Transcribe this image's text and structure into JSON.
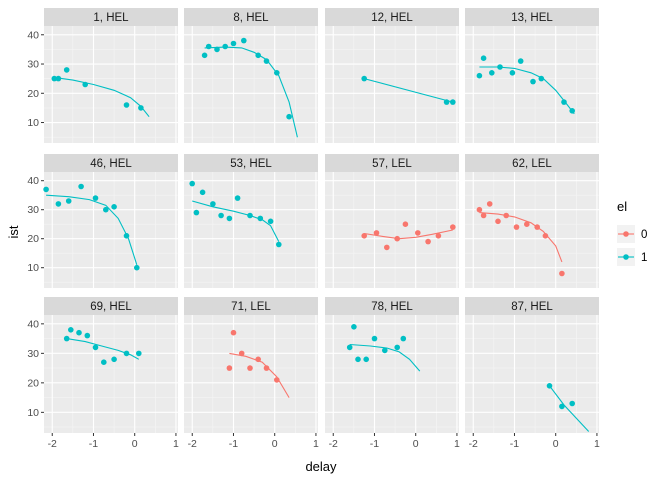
{
  "chart_data": {
    "type": "scatter",
    "xlabel": "delay",
    "ylabel": "ist",
    "xlim": [
      -2.2,
      1.05
    ],
    "ylim": [
      3,
      43
    ],
    "x_ticks": [
      -2,
      -1,
      0,
      1
    ],
    "x_tick_labels": [
      "-2",
      "-1",
      "0",
      "1"
    ],
    "y_ticks": [
      10,
      20,
      30,
      40
    ],
    "y_tick_labels": [
      "10",
      "20",
      "30",
      "40"
    ],
    "grid": true,
    "legend": {
      "title": "el",
      "position": "right",
      "entries": [
        {
          "label": "0",
          "color": "#F8766D"
        },
        {
          "label": "1",
          "color": "#00BFC4"
        }
      ]
    },
    "panels": [
      {
        "label": "1, HEL",
        "el": "1",
        "points": [
          [
            -1.95,
            25
          ],
          [
            -1.85,
            25
          ],
          [
            -1.65,
            28
          ],
          [
            -1.2,
            23
          ],
          [
            -0.2,
            16
          ],
          [
            0.15,
            15
          ]
        ],
        "curve": [
          [
            -2.0,
            25.5
          ],
          [
            -1.5,
            24.5
          ],
          [
            -1.0,
            23
          ],
          [
            -0.5,
            21
          ],
          [
            -0.1,
            18.5
          ],
          [
            0.15,
            15.5
          ],
          [
            0.35,
            12
          ]
        ]
      },
      {
        "label": "8, HEL",
        "el": "1",
        "points": [
          [
            -1.7,
            33
          ],
          [
            -1.6,
            36
          ],
          [
            -1.4,
            35
          ],
          [
            -1.2,
            36
          ],
          [
            -1.0,
            37
          ],
          [
            -0.75,
            38
          ],
          [
            -0.4,
            33
          ],
          [
            -0.2,
            31
          ],
          [
            0.05,
            27
          ],
          [
            0.35,
            12
          ]
        ],
        "curve": [
          [
            -1.7,
            35.5
          ],
          [
            -1.2,
            35.8
          ],
          [
            -0.8,
            35.5
          ],
          [
            -0.5,
            34
          ],
          [
            -0.2,
            31.5
          ],
          [
            0.1,
            26
          ],
          [
            0.35,
            17
          ],
          [
            0.55,
            5
          ]
        ]
      },
      {
        "label": "12, HEL",
        "el": "1",
        "points": [
          [
            -1.25,
            25
          ],
          [
            0.75,
            17
          ],
          [
            0.9,
            17
          ]
        ],
        "curve": [
          [
            -1.25,
            25
          ],
          [
            0.9,
            17
          ]
        ]
      },
      {
        "label": "13, HEL",
        "el": "1",
        "points": [
          [
            -1.85,
            26
          ],
          [
            -1.75,
            32
          ],
          [
            -1.55,
            27
          ],
          [
            -1.35,
            29
          ],
          [
            -1.05,
            27
          ],
          [
            -0.85,
            31
          ],
          [
            -0.55,
            24
          ],
          [
            -0.35,
            25
          ],
          [
            0.2,
            17
          ],
          [
            0.4,
            14
          ]
        ],
        "curve": [
          [
            -1.85,
            29
          ],
          [
            -1.4,
            29
          ],
          [
            -1.0,
            28.5
          ],
          [
            -0.6,
            27
          ],
          [
            -0.3,
            25
          ],
          [
            0.0,
            21
          ],
          [
            0.2,
            17.5
          ],
          [
            0.45,
            13
          ]
        ]
      },
      {
        "label": "46, HEL",
        "el": "1",
        "points": [
          [
            -2.15,
            37
          ],
          [
            -1.85,
            32
          ],
          [
            -1.6,
            33
          ],
          [
            -1.3,
            38
          ],
          [
            -0.95,
            34
          ],
          [
            -0.7,
            30
          ],
          [
            -0.5,
            31
          ],
          [
            -0.2,
            21
          ],
          [
            0.05,
            10
          ]
        ],
        "curve": [
          [
            -2.15,
            35
          ],
          [
            -1.6,
            34.5
          ],
          [
            -1.1,
            33.5
          ],
          [
            -0.7,
            31.5
          ],
          [
            -0.4,
            27
          ],
          [
            -0.15,
            20
          ],
          [
            0.05,
            11
          ]
        ]
      },
      {
        "label": "53, HEL",
        "el": "1",
        "points": [
          [
            -2.0,
            39
          ],
          [
            -1.9,
            29
          ],
          [
            -1.75,
            36
          ],
          [
            -1.5,
            32
          ],
          [
            -1.3,
            28
          ],
          [
            -1.1,
            27
          ],
          [
            -0.9,
            34
          ],
          [
            -0.6,
            28
          ],
          [
            -0.35,
            27
          ],
          [
            -0.1,
            26
          ],
          [
            0.1,
            18
          ]
        ],
        "curve": [
          [
            -2.0,
            33
          ],
          [
            -1.5,
            31
          ],
          [
            -1.0,
            29.5
          ],
          [
            -0.6,
            28
          ],
          [
            -0.3,
            26.5
          ],
          [
            -0.1,
            24.5
          ],
          [
            0.1,
            19
          ]
        ]
      },
      {
        "label": "57, LEL",
        "el": "0",
        "points": [
          [
            -1.25,
            21
          ],
          [
            -0.95,
            22
          ],
          [
            -0.7,
            17
          ],
          [
            -0.45,
            20
          ],
          [
            -0.25,
            25
          ],
          [
            0.05,
            22
          ],
          [
            0.3,
            19
          ],
          [
            0.55,
            21
          ],
          [
            0.9,
            24
          ]
        ],
        "curve": [
          [
            -1.25,
            21.8
          ],
          [
            -0.8,
            20.8
          ],
          [
            -0.4,
            20
          ],
          [
            0.0,
            20.5
          ],
          [
            0.4,
            21.5
          ],
          [
            0.9,
            23
          ]
        ]
      },
      {
        "label": "62, LEL",
        "el": "0",
        "points": [
          [
            -1.85,
            30
          ],
          [
            -1.75,
            28
          ],
          [
            -1.6,
            32
          ],
          [
            -1.4,
            26
          ],
          [
            -1.2,
            28
          ],
          [
            -0.95,
            24
          ],
          [
            -0.7,
            25
          ],
          [
            -0.45,
            24
          ],
          [
            -0.25,
            21
          ],
          [
            0.15,
            8
          ]
        ],
        "curve": [
          [
            -1.85,
            29
          ],
          [
            -1.4,
            28.5
          ],
          [
            -1.0,
            27.5
          ],
          [
            -0.6,
            25.5
          ],
          [
            -0.3,
            22.5
          ],
          [
            0.0,
            17.5
          ],
          [
            0.15,
            12
          ]
        ]
      },
      {
        "label": "69, HEL",
        "el": "1",
        "points": [
          [
            -1.65,
            35
          ],
          [
            -1.55,
            38
          ],
          [
            -1.35,
            37
          ],
          [
            -1.15,
            36
          ],
          [
            -0.95,
            32
          ],
          [
            -0.75,
            27
          ],
          [
            -0.5,
            28
          ],
          [
            -0.2,
            30
          ],
          [
            0.1,
            30
          ]
        ],
        "curve": [
          [
            -1.65,
            35
          ],
          [
            -1.2,
            34
          ],
          [
            -0.8,
            32.5
          ],
          [
            -0.4,
            31
          ],
          [
            -0.1,
            29.5
          ],
          [
            0.1,
            28
          ]
        ]
      },
      {
        "label": "71, LEL",
        "el": "0",
        "points": [
          [
            -1.1,
            25
          ],
          [
            -1.0,
            37
          ],
          [
            -0.8,
            30
          ],
          [
            -0.6,
            25
          ],
          [
            -0.4,
            28
          ],
          [
            -0.2,
            25
          ],
          [
            0.05,
            21
          ]
        ],
        "curve": [
          [
            -1.1,
            30
          ],
          [
            -0.7,
            29
          ],
          [
            -0.3,
            27
          ],
          [
            0.05,
            22
          ],
          [
            0.35,
            15
          ]
        ]
      },
      {
        "label": "78, HEL",
        "el": "1",
        "points": [
          [
            -1.6,
            32
          ],
          [
            -1.5,
            39
          ],
          [
            -1.4,
            28
          ],
          [
            -1.2,
            28
          ],
          [
            -1.0,
            35
          ],
          [
            -0.75,
            31
          ],
          [
            -0.45,
            32
          ],
          [
            -0.3,
            35
          ]
        ],
        "curve": [
          [
            -1.6,
            33
          ],
          [
            -1.1,
            32.5
          ],
          [
            -0.7,
            31.8
          ],
          [
            -0.4,
            30.5
          ],
          [
            -0.15,
            28
          ],
          [
            0.1,
            24
          ]
        ]
      },
      {
        "label": "87, HEL",
        "el": "1",
        "points": [
          [
            -0.15,
            19
          ],
          [
            0.15,
            12
          ],
          [
            0.4,
            13
          ]
        ],
        "curve": [
          [
            -0.15,
            19
          ],
          [
            0.2,
            12.5
          ],
          [
            0.8,
            3.5
          ]
        ]
      }
    ]
  }
}
